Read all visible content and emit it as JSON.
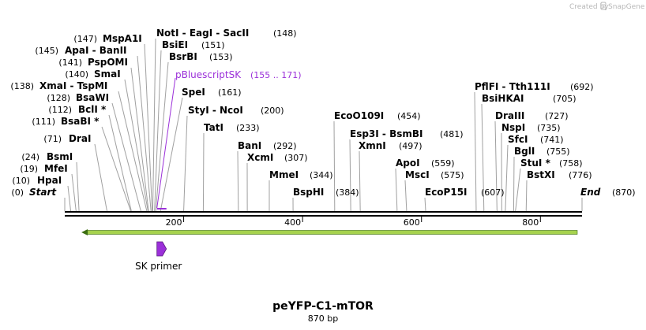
{
  "header": {
    "created_by": "Created by",
    "brand": "SnapGene",
    "brand_icon": "snapgene-logo-icon"
  },
  "map": {
    "title": "peYFP-C1-mTOR",
    "length_label": "870 bp",
    "total_bp": 870
  },
  "colors": {
    "backbone": "#000000",
    "feature_purple": "#9b30d9",
    "orf_green": "#a6d24e",
    "orf_outline": "#3c6e12",
    "primer_fill": "#9b30d9",
    "label_line": "#a0a0a0"
  },
  "ticks": [
    {
      "bp": 200,
      "label": "200"
    },
    {
      "bp": 400,
      "label": "400"
    },
    {
      "bp": 600,
      "label": "600"
    },
    {
      "bp": 800,
      "label": "800"
    }
  ],
  "sites_left": [
    {
      "name": "Start",
      "pos_text": "(0)",
      "bp": 0,
      "italic": true
    },
    {
      "name": "HpaI",
      "pos_text": "(10)",
      "bp": 10
    },
    {
      "name": "MfeI",
      "pos_text": "(19)",
      "bp": 19
    },
    {
      "name": "BsmI",
      "pos_text": "(24)",
      "bp": 24
    },
    {
      "name": "DraI",
      "pos_text": "(71)",
      "bp": 71
    },
    {
      "name": "BsaBI *",
      "pos_text": "(111)",
      "bp": 111
    },
    {
      "name": "BclI *",
      "pos_text": "(112)",
      "bp": 112
    },
    {
      "name": "BsaWI",
      "pos_text": "(128)",
      "bp": 128
    },
    {
      "name": "XmaI  -  TspMI",
      "pos_text": "(138)",
      "bp": 138
    },
    {
      "name": "SmaI",
      "pos_text": "(140)",
      "bp": 140
    },
    {
      "name": "PspOMI",
      "pos_text": "(141)",
      "bp": 141
    },
    {
      "name": "ApaI  -  BanII",
      "pos_text": "(145)",
      "bp": 145
    },
    {
      "name": "MspA1I",
      "pos_text": "(147)",
      "bp": 147
    }
  ],
  "sites_right": [
    {
      "name": "NotI  -  EagI  -  SacII",
      "pos_text": "(148)",
      "bp": 148
    },
    {
      "name": "BsiEI",
      "pos_text": "(151)",
      "bp": 151
    },
    {
      "name": "BsrBI",
      "pos_text": "(153)",
      "bp": 153
    },
    {
      "name": "SpeI",
      "pos_text": "(161)",
      "bp": 161
    },
    {
      "name": "StyI  -  NcoI",
      "pos_text": "(200)",
      "bp": 200
    },
    {
      "name": "TatI",
      "pos_text": "(233)",
      "bp": 233
    },
    {
      "name": "BanI",
      "pos_text": "(292)",
      "bp": 292
    },
    {
      "name": "XcmI",
      "pos_text": "(307)",
      "bp": 307
    },
    {
      "name": "MmeI",
      "pos_text": "(344)",
      "bp": 344
    },
    {
      "name": "BspHI",
      "pos_text": "(384)",
      "bp": 384
    },
    {
      "name": "EcoO109I",
      "pos_text": "(454)",
      "bp": 454
    },
    {
      "name": "Esp3I  -  BsmBI",
      "pos_text": "(481)",
      "bp": 481
    },
    {
      "name": "XmnI",
      "pos_text": "(497)",
      "bp": 497
    },
    {
      "name": "ApoI",
      "pos_text": "(559)",
      "bp": 559
    },
    {
      "name": "MscI",
      "pos_text": "(575)",
      "bp": 575
    },
    {
      "name": "EcoP15I",
      "pos_text": "(607)",
      "bp": 607
    },
    {
      "name": "PflFI  -  Tth111I",
      "pos_text": "(692)",
      "bp": 692
    },
    {
      "name": "BsiHKAI",
      "pos_text": "(705)",
      "bp": 705
    },
    {
      "name": "DraIII",
      "pos_text": "(727)",
      "bp": 727
    },
    {
      "name": "NspI",
      "pos_text": "(735)",
      "bp": 735
    },
    {
      "name": "SfcI",
      "pos_text": "(741)",
      "bp": 741
    },
    {
      "name": "BglI",
      "pos_text": "(755)",
      "bp": 755
    },
    {
      "name": "StuI *",
      "pos_text": "(758)",
      "bp": 758
    },
    {
      "name": "BstXI",
      "pos_text": "(776)",
      "bp": 776
    },
    {
      "name": "End",
      "pos_text": "(870)",
      "bp": 870,
      "italic": true
    }
  ],
  "features": [
    {
      "name": "pBluescriptSK",
      "pos_text": "(155 .. 171)",
      "start": 155,
      "end": 171,
      "type": "primer_bind"
    }
  ],
  "orfs": [
    {
      "start": 28,
      "end": 870,
      "direction": "reverse"
    }
  ],
  "primers": [
    {
      "name": "SK primer",
      "start": 155,
      "end": 171,
      "direction": "forward"
    }
  ]
}
